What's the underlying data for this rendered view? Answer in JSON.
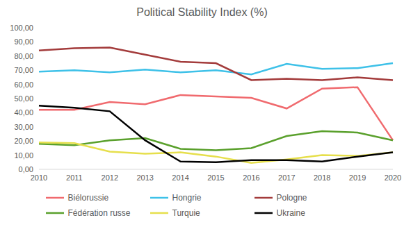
{
  "chart_data": {
    "type": "line",
    "title": "Political Stability Index (%)",
    "categories": [
      "2010",
      "2011",
      "2012",
      "2013",
      "2014",
      "2015",
      "2016",
      "2017",
      "2018",
      "2019",
      "2020"
    ],
    "series": [
      {
        "name": "Biélorussie",
        "color": "#f06a6e",
        "values": [
          42,
          42,
          47.5,
          46,
          52.5,
          51.5,
          50.5,
          43,
          57,
          58,
          20.5
        ]
      },
      {
        "name": "Hongrie",
        "color": "#3ec1e8",
        "values": [
          69,
          70,
          68.5,
          70.5,
          68.5,
          70,
          67,
          74.5,
          71,
          71.5,
          75
        ]
      },
      {
        "name": "Pologne",
        "color": "#a33b3b",
        "values": [
          84,
          85.5,
          86,
          81,
          76,
          75,
          63,
          64,
          63,
          65,
          63
        ]
      },
      {
        "name": "Fédération russe",
        "color": "#5aa02c",
        "values": [
          18,
          17,
          20.5,
          22,
          14.5,
          13.5,
          15,
          23.5,
          27,
          26,
          20.5
        ]
      },
      {
        "name": "Turquie",
        "color": "#e6df4c",
        "values": [
          19,
          18.5,
          12.5,
          11,
          12,
          9,
          4.5,
          7,
          10,
          9.5,
          12
        ]
      },
      {
        "name": "Ukraine",
        "color": "#000000",
        "values": [
          45,
          43.5,
          41,
          20.5,
          5.5,
          5,
          6.5,
          6.5,
          5.5,
          9,
          12
        ]
      }
    ],
    "ylim": [
      0,
      100
    ],
    "yticks": [
      {
        "value": 0,
        "label": "0,00"
      },
      {
        "value": 10,
        "label": "10,00"
      },
      {
        "value": 20,
        "label": "20,00"
      },
      {
        "value": 30,
        "label": "30,00"
      },
      {
        "value": 40,
        "label": "40,00"
      },
      {
        "value": 50,
        "label": "50,00"
      },
      {
        "value": 60,
        "label": "60,00"
      },
      {
        "value": 70,
        "label": "70,00"
      },
      {
        "value": 80,
        "label": "80,00"
      },
      {
        "value": 90,
        "label": "90,00"
      },
      {
        "value": 100,
        "label": "100,00"
      }
    ],
    "grid": false,
    "legend": "bottom"
  }
}
